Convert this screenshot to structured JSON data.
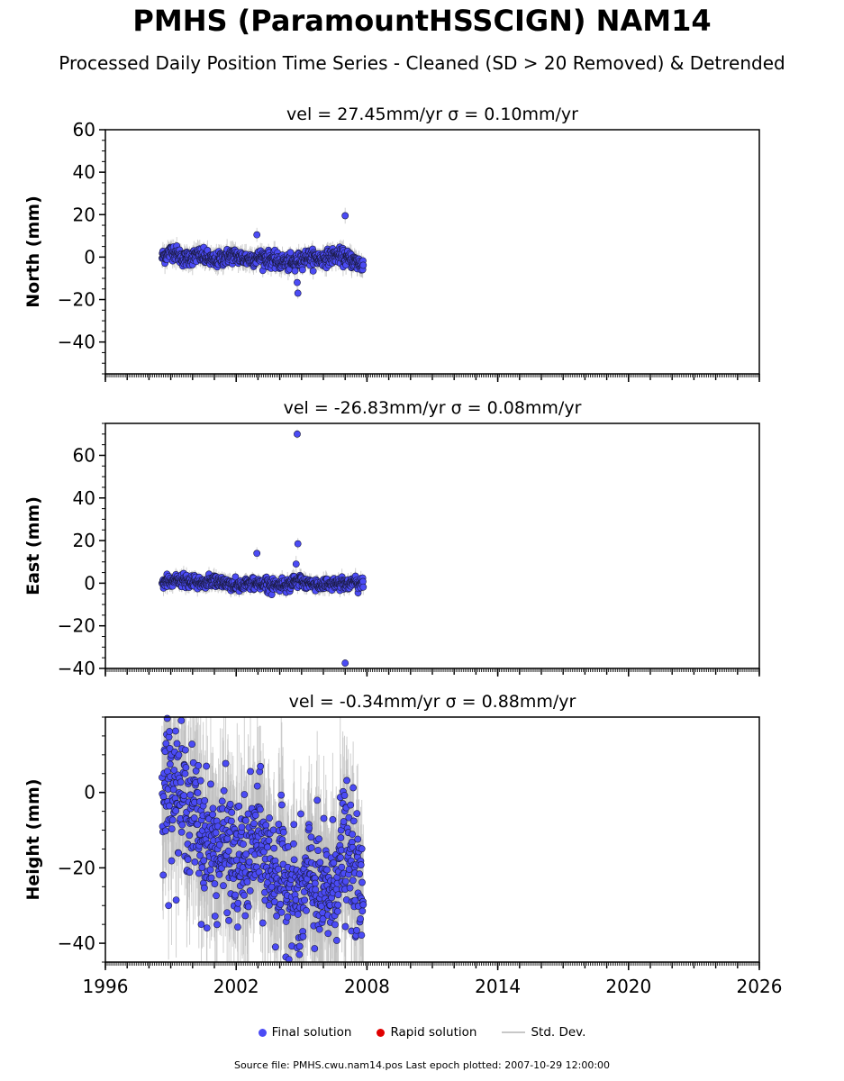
{
  "title": "PMHS (ParamountHSSCIGN) NAM14",
  "subtitle": "Processed Daily Position Time Series - Cleaned (SD > 20 Removed) & Detrended",
  "source": "Source file: PMHS.cwu.nam14.pos  Last epoch plotted: 2007-10-29 12:00:00",
  "colors": {
    "final_solution": "#4b4bf5",
    "marker_edge": "#1a1a40",
    "rapid_solution": "#e00000",
    "std_dev": "#bdbdbd"
  },
  "legend": {
    "final_label": "Final solution",
    "rapid_label": "Rapid solution",
    "std_label": "Std. Dev."
  },
  "chart_data": [
    {
      "type": "scatter",
      "panel": "north",
      "title": "vel = 27.45mm/yr   σ = 0.10mm/yr",
      "ylabel": "North (mm)",
      "xlim": [
        1996,
        2026
      ],
      "ylim": [
        -55,
        60
      ],
      "yticks": [
        -40,
        -20,
        0,
        20,
        40,
        60
      ],
      "xticks": [
        1996,
        2002,
        2008,
        2014,
        2020,
        2026
      ],
      "data_span": [
        1998.6,
        2007.83
      ],
      "envelope": [
        [
          1998.6,
          0
        ],
        [
          1999.1,
          3
        ],
        [
          1999.6,
          -1
        ],
        [
          2000.3,
          1
        ],
        [
          2001.0,
          -2
        ],
        [
          2001.8,
          1
        ],
        [
          2002.5,
          -1
        ],
        [
          2003.2,
          0
        ],
        [
          2003.9,
          -2
        ],
        [
          2004.6,
          -3
        ],
        [
          2005.2,
          0
        ],
        [
          2005.9,
          -1
        ],
        [
          2006.6,
          1
        ],
        [
          2007.2,
          -1
        ],
        [
          2007.83,
          -4
        ]
      ],
      "spread": 1.8,
      "outliers": [
        [
          2002.95,
          10.5
        ],
        [
          2004.8,
          -12
        ],
        [
          2004.83,
          -17
        ],
        [
          2007.0,
          19.5
        ],
        [
          2004.7,
          -6.5
        ]
      ]
    },
    {
      "type": "scatter",
      "panel": "east",
      "title": "vel = -26.83mm/yr   σ = 0.08mm/yr",
      "ylabel": "East (mm)",
      "xlim": [
        1996,
        2026
      ],
      "ylim": [
        -40,
        75
      ],
      "yticks": [
        -40,
        -20,
        0,
        20,
        40,
        60
      ],
      "xticks": [
        1996,
        2002,
        2008,
        2014,
        2020,
        2026
      ],
      "data_span": [
        1998.6,
        2007.83
      ],
      "envelope": [
        [
          1998.6,
          0
        ],
        [
          1999.3,
          1.5
        ],
        [
          2000.2,
          0
        ],
        [
          2001.0,
          1
        ],
        [
          2002.0,
          -1
        ],
        [
          2003.0,
          0
        ],
        [
          2004.0,
          -1
        ],
        [
          2004.9,
          1
        ],
        [
          2005.6,
          -1
        ],
        [
          2006.5,
          0
        ],
        [
          2007.83,
          0
        ]
      ],
      "spread": 1.4,
      "outliers": [
        [
          2002.95,
          14
        ],
        [
          2004.8,
          70
        ],
        [
          2004.83,
          18.5
        ],
        [
          2004.75,
          9
        ],
        [
          2007.0,
          -37.5
        ]
      ]
    },
    {
      "type": "scatter",
      "panel": "height",
      "title": "vel = -0.34mm/yr   σ = 0.88mm/yr",
      "ylabel": "Height (mm)",
      "xlim": [
        1996,
        2026
      ],
      "ylim": [
        -45,
        20
      ],
      "yticks": [
        -40,
        -20,
        0
      ],
      "xticks": [
        1996,
        2002,
        2008,
        2014,
        2020,
        2026
      ],
      "data_span": [
        1998.6,
        2007.83
      ],
      "envelope": [
        [
          1998.6,
          0
        ],
        [
          1999.0,
          5
        ],
        [
          1999.5,
          -2
        ],
        [
          2000.0,
          -5
        ],
        [
          2000.6,
          -12
        ],
        [
          2001.1,
          -16
        ],
        [
          2001.6,
          -14
        ],
        [
          2002.0,
          -20
        ],
        [
          2002.5,
          -18
        ],
        [
          2003.0,
          -12
        ],
        [
          2003.5,
          -20
        ],
        [
          2004.0,
          -22
        ],
        [
          2004.5,
          -25
        ],
        [
          2004.9,
          -30
        ],
        [
          2005.4,
          -22
        ],
        [
          2005.9,
          -28
        ],
        [
          2006.4,
          -26
        ],
        [
          2006.9,
          -15
        ],
        [
          2007.4,
          -20
        ],
        [
          2007.83,
          -30
        ]
      ],
      "spread": 8,
      "outliers": [
        [
          1998.9,
          -30
        ],
        [
          2004.9,
          -43
        ],
        [
          2000.4,
          -35
        ]
      ]
    }
  ]
}
